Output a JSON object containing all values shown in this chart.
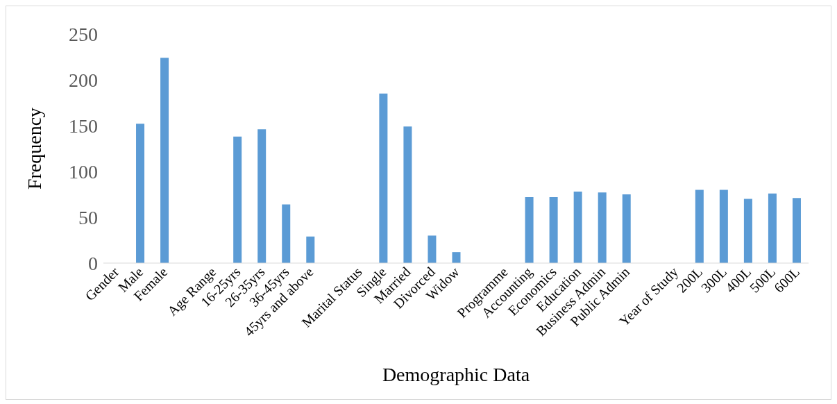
{
  "chart_data": {
    "type": "bar",
    "xlabel": "Demographic Data",
    "ylabel": "Frequency",
    "categories": [
      "Gender",
      "Male",
      "Female",
      null,
      "Age Range",
      "16-25yrs",
      "26-35yrs",
      "36-45yrs",
      "45yrs and above",
      null,
      "Marital Status",
      "Single",
      "Married",
      "Divorced",
      "Widow",
      null,
      "Programme",
      "Accounting",
      "Economics",
      "Education",
      "Business Admin",
      "Public Admin",
      null,
      "Year of Study",
      "200L",
      "300L",
      "400L",
      "500L",
      "600L"
    ],
    "values": [
      null,
      152,
      224,
      null,
      null,
      138,
      146,
      64,
      29,
      null,
      null,
      185,
      149,
      30,
      12,
      null,
      null,
      72,
      72,
      78,
      77,
      75,
      null,
      null,
      80,
      80,
      70,
      76,
      71
    ],
    "color": "#5b9bd5",
    "ylim": [
      0,
      250
    ],
    "yticks": [
      0,
      50,
      100,
      150,
      200,
      250
    ],
    "grid": false
  }
}
